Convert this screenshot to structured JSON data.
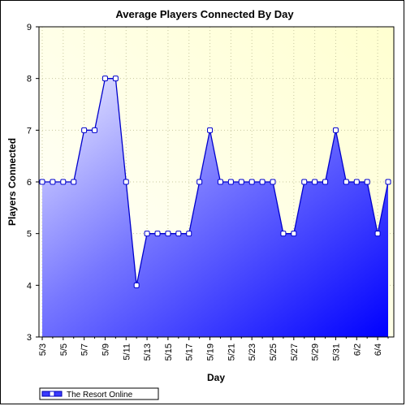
{
  "chart_data": {
    "type": "area",
    "title": "Average Players Connected By Day",
    "xlabel": "Day",
    "ylabel": "Players Connected",
    "ylim": [
      3,
      9
    ],
    "yticks": [
      3,
      4,
      5,
      6,
      7,
      8,
      9
    ],
    "grid": true,
    "legend_position": "bottom-left",
    "x": [
      "5/3",
      "5/4",
      "5/5",
      "5/6",
      "5/7",
      "5/8",
      "5/9",
      "5/10",
      "5/11",
      "5/12",
      "5/13",
      "5/14",
      "5/15",
      "5/16",
      "5/17",
      "5/18",
      "5/19",
      "5/20",
      "5/21",
      "5/22",
      "5/23",
      "5/24",
      "5/25",
      "5/26",
      "5/27",
      "5/28",
      "5/29",
      "5/30",
      "5/31",
      "6/1",
      "6/2",
      "6/3",
      "6/4",
      "6/5"
    ],
    "xtick_labels": [
      "5/3",
      "",
      "5/5",
      "",
      "5/7",
      "",
      "5/9",
      "",
      "5/11",
      "",
      "5/13",
      "",
      "5/15",
      "",
      "5/17",
      "",
      "5/19",
      "",
      "5/21",
      "",
      "5/23",
      "",
      "5/25",
      "",
      "5/27",
      "",
      "5/29",
      "",
      "5/31",
      "",
      "6/2",
      "",
      "6/4",
      ""
    ],
    "series": [
      {
        "name": "The Resort Online",
        "values": [
          6,
          6,
          6,
          6,
          7,
          7,
          8,
          8,
          6,
          4,
          5,
          5,
          5,
          5,
          5,
          6,
          7,
          6,
          6,
          6,
          6,
          6,
          6,
          5,
          5,
          6,
          6,
          6,
          7,
          6,
          6,
          6,
          5,
          6
        ]
      }
    ],
    "colors": {
      "plot_background_top": "#ffffd8",
      "line": "#0000cc",
      "area_light": "#e8e8ff",
      "area_dark": "#0000ff",
      "marker_fill": "#ffffff",
      "grid": "#c8c8a0"
    }
  }
}
